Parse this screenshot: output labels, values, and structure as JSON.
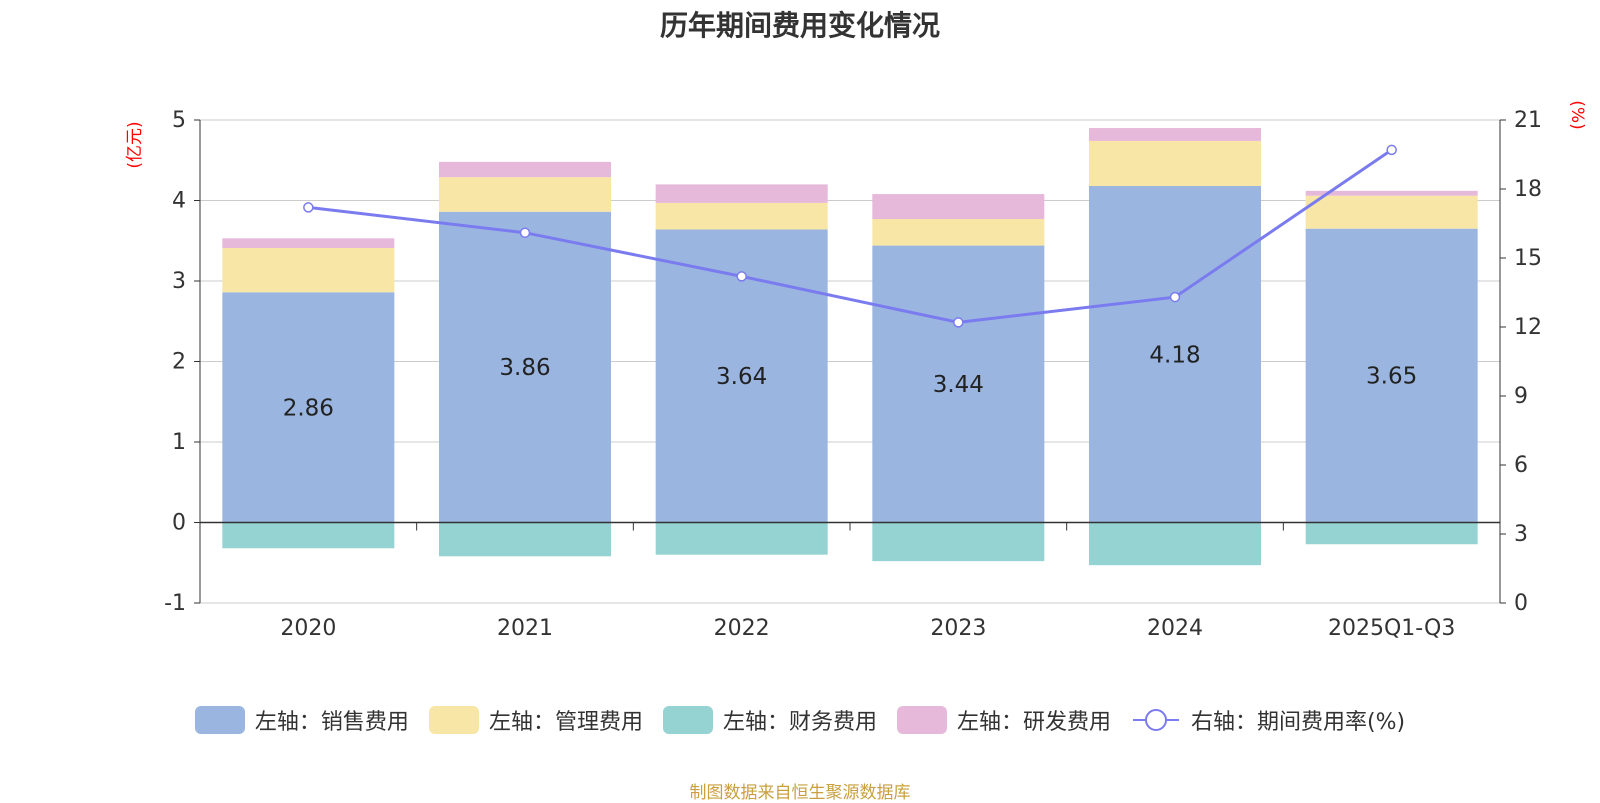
{
  "chart_data": {
    "type": "bar",
    "title": "历年期间费用变化情况",
    "categories": [
      "2020",
      "2021",
      "2022",
      "2023",
      "2024",
      "2025Q1-Q3"
    ],
    "series": [
      {
        "name": "左轴：销售费用",
        "axis": "left",
        "kind": "bar",
        "color": "#9ab6e0",
        "values": [
          2.86,
          3.86,
          3.64,
          3.44,
          4.18,
          3.65
        ]
      },
      {
        "name": "左轴：管理费用",
        "axis": "left",
        "kind": "bar",
        "color": "#f7e6a6",
        "values": [
          0.55,
          0.43,
          0.33,
          0.33,
          0.56,
          0.41
        ]
      },
      {
        "name": "左轴：财务费用",
        "axis": "left",
        "kind": "bar",
        "color": "#95d2d2",
        "values": [
          -0.32,
          -0.42,
          -0.4,
          -0.48,
          -0.53,
          -0.27
        ]
      },
      {
        "name": "左轴：研发费用",
        "axis": "left",
        "kind": "bar",
        "color": "#e6b8d9",
        "values": [
          0.12,
          0.19,
          0.23,
          0.31,
          0.16,
          0.06
        ]
      },
      {
        "name": "右轴：期间费用率(%)",
        "axis": "right",
        "kind": "line",
        "color": "#7b7bf0",
        "values": [
          17.2,
          16.1,
          14.2,
          12.2,
          13.3,
          19.7
        ]
      }
    ],
    "data_labels": [
      "2.86",
      "3.86",
      "3.64",
      "3.44",
      "4.18",
      "3.65"
    ],
    "left_axis": {
      "label": "(亿元)",
      "min": -1,
      "max": 5,
      "ticks": [
        "-1",
        "0",
        "1",
        "2",
        "3",
        "4",
        "5"
      ]
    },
    "right_axis": {
      "label": "(%)",
      "min": 0,
      "max": 21,
      "ticks": [
        "0",
        "3",
        "6",
        "9",
        "12",
        "15",
        "18",
        "21"
      ]
    },
    "grid": true,
    "legend_position": "bottom",
    "axis_label_color": "#ff0000"
  },
  "source_text": "制图数据来自恒生聚源数据库",
  "source_color": "#c8a040"
}
